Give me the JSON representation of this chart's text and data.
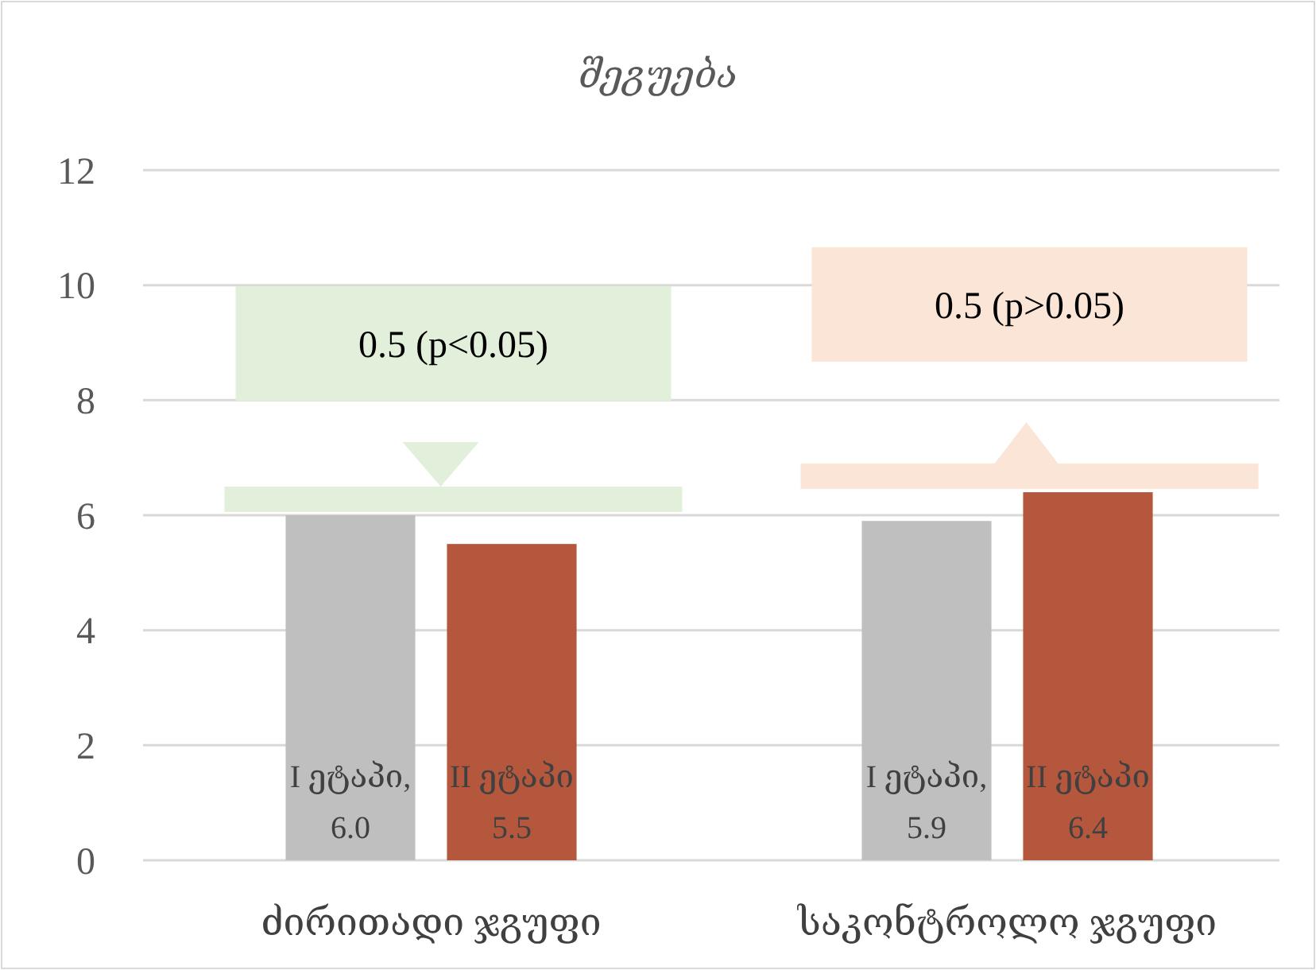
{
  "chart_data": {
    "type": "bar",
    "title": "შეგუება",
    "categories": [
      "ძირითადი ჯგუფი",
      "საკონტროლო ჯგუფი"
    ],
    "series": [
      {
        "name": "I ეტაპი,",
        "color": "#bfbfbf",
        "values": [
          6.0,
          5.9
        ],
        "value_labels": [
          "6.0",
          "5.9"
        ]
      },
      {
        "name": "II ეტაპი",
        "color": "#b5573c",
        "values": [
          5.5,
          6.4
        ],
        "value_labels": [
          "5.5",
          "6.4"
        ]
      }
    ],
    "ylim": [
      0,
      12
    ],
    "yticks": [
      0,
      2,
      4,
      6,
      8,
      10,
      12
    ],
    "grid": "y",
    "annotations": [
      "0.5 (p<0.05)",
      "0.5 (p>0.05)"
    ]
  }
}
